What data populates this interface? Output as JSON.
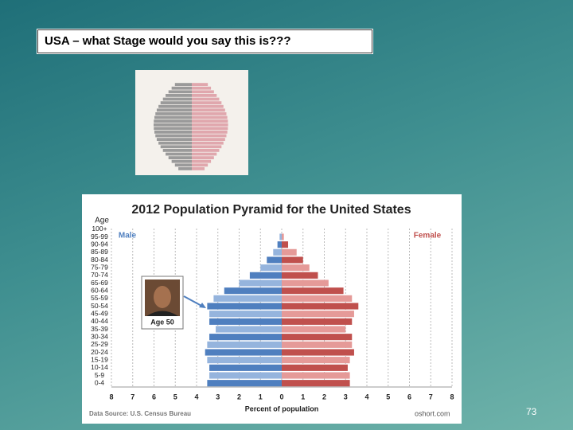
{
  "slide": {
    "title": "USA – what Stage would you say this is???",
    "page_number": "73"
  },
  "chart_data": {
    "type": "pyramid",
    "title": "2012 Population Pyramid for the United States",
    "y_label": "Age",
    "x_label": "Percent of population",
    "source": "Data Source: U.S. Census Bureau",
    "credit": "oshort.com",
    "annotation": "Age 50",
    "categories": [
      "0-4",
      "5-9",
      "10-14",
      "15-19",
      "20-24",
      "25-29",
      "30-34",
      "35-39",
      "40-44",
      "45-49",
      "50-54",
      "55-59",
      "60-64",
      "65-69",
      "70-74",
      "75-79",
      "80-84",
      "85-89",
      "90-94",
      "95-99",
      "100+"
    ],
    "series": [
      {
        "name": "Male",
        "color": "#4f7fbf",
        "alt_color": "#95b4dd",
        "values": [
          -3.5,
          -3.4,
          -3.4,
          -3.5,
          -3.6,
          -3.5,
          -3.4,
          -3.1,
          -3.4,
          -3.4,
          -3.5,
          -3.2,
          -2.7,
          -2.0,
          -1.5,
          -1.0,
          -0.7,
          -0.4,
          -0.2,
          -0.1,
          0
        ]
      },
      {
        "name": "Female",
        "color": "#c0504d",
        "alt_color": "#e59a98",
        "values": [
          3.2,
          3.2,
          3.1,
          3.2,
          3.4,
          3.3,
          3.3,
          3.0,
          3.3,
          3.4,
          3.6,
          3.3,
          2.9,
          2.2,
          1.7,
          1.3,
          1.0,
          0.7,
          0.3,
          0.1,
          0
        ]
      }
    ],
    "xlim": [
      -8,
      8
    ],
    "xticks": [
      {
        "value": -8,
        "label": "8"
      },
      {
        "value": -7,
        "label": "7"
      },
      {
        "value": -6,
        "label": "6"
      },
      {
        "value": -5,
        "label": "5"
      },
      {
        "value": -4,
        "label": "4"
      },
      {
        "value": -3,
        "label": "3"
      },
      {
        "value": -2,
        "label": "2"
      },
      {
        "value": -1,
        "label": "1"
      },
      0,
      1,
      2,
      3,
      4,
      5,
      6,
      7,
      8
    ],
    "grid": true
  }
}
